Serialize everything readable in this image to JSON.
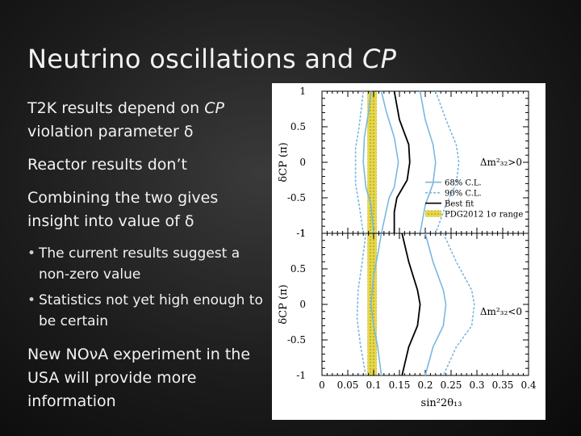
{
  "slide": {
    "title_main": "Neutrino oscillations and ",
    "title_italic": "CP",
    "bullets": [
      {
        "pre": "T2K results depend on ",
        "italic": "CP",
        "post": " violation parameter δ"
      },
      {
        "pre": "Reactor results don’t",
        "italic": "",
        "post": ""
      },
      {
        "pre": "Combining the two gives insight into value of δ",
        "italic": "",
        "post": ""
      }
    ],
    "sub_bullets": [
      "The current results suggest a non-zero value",
      "Statistics not yet high enough to be certain"
    ],
    "last_bullet": "New NOνA experiment in the USA will provide more information"
  },
  "chart_data": {
    "type": "line",
    "xlabel": "sin²2θ₁₃",
    "ylabel": "δCP (π)",
    "xlim": [
      0,
      0.4
    ],
    "ylim": [
      -1,
      1
    ],
    "x_ticks": [
      "0",
      "0.05",
      "0.1",
      "0.15",
      "0.2",
      "0.25",
      "0.3",
      "0.35",
      "0.4"
    ],
    "y_ticks": [
      "1",
      "0.5",
      "0",
      "-0.5",
      "-1"
    ],
    "legend_entries": [
      "68% C.L.",
      "90% C.L.",
      "Best fit",
      "PDG2012 1σ range"
    ],
    "legend_position": "right",
    "band": {
      "label": "PDG2012 1σ range",
      "xmin": 0.088,
      "xmax": 0.106,
      "color": "#e6d84a"
    },
    "panels": [
      {
        "label": "Δm²₃₂>0",
        "series": [
          {
            "name": "68% C.L.",
            "style": "solid",
            "color": "#7ab8e0",
            "points": [
              [
                0.095,
                1
              ],
              [
                0.09,
                0.7
              ],
              [
                0.082,
                0.35
              ],
              [
                0.08,
                0
              ],
              [
                0.085,
                -0.35
              ],
              [
                0.095,
                -0.6
              ],
              [
                0.1,
                -1
              ],
              [
                0.115,
                -1
              ],
              [
                0.13,
                -0.5
              ],
              [
                0.14,
                -0.35
              ],
              [
                0.148,
                0
              ],
              [
                0.14,
                0.35
              ],
              [
                0.125,
                0.7
              ],
              [
                0.115,
                1
              ]
            ],
            "closed": false
          },
          {
            "name": "68% C.L. outer",
            "style": "solid",
            "color": "#7ab8e0",
            "points": [
              [
                0.19,
                1
              ],
              [
                0.2,
                0.6
              ],
              [
                0.215,
                0.25
              ],
              [
                0.22,
                0
              ],
              [
                0.215,
                -0.3
              ],
              [
                0.2,
                -0.6
              ],
              [
                0.19,
                -1
              ]
            ]
          },
          {
            "name": "90% C.L.",
            "style": "dashed",
            "color": "#7ab8e0",
            "points": [
              [
                0.22,
                1
              ],
              [
                0.24,
                0.6
              ],
              [
                0.26,
                0.25
              ],
              [
                0.265,
                0
              ],
              [
                0.26,
                -0.3
              ],
              [
                0.24,
                -0.6
              ],
              [
                0.22,
                -1
              ]
            ]
          },
          {
            "name": "90% C.L. inner",
            "style": "dashed",
            "color": "#7ab8e0",
            "points": [
              [
                0.08,
                1
              ],
              [
                0.072,
                0.5
              ],
              [
                0.065,
                0.2
              ],
              [
                0.065,
                -0.3
              ],
              [
                0.072,
                -0.6
              ],
              [
                0.08,
                -1
              ]
            ]
          },
          {
            "name": "Best fit",
            "style": "solid",
            "color": "#000000",
            "points": [
              [
                0.14,
                1
              ],
              [
                0.15,
                0.6
              ],
              [
                0.168,
                0.25
              ],
              [
                0.17,
                0
              ],
              [
                0.165,
                -0.25
              ],
              [
                0.145,
                -0.5
              ],
              [
                0.14,
                -0.7
              ],
              [
                0.14,
                -1
              ]
            ]
          }
        ]
      },
      {
        "label": "Δm²₃₂<0",
        "series": [
          {
            "name": "68% C.L.",
            "style": "solid",
            "color": "#7ab8e0",
            "points": [
              [
                0.115,
                1
              ],
              [
                0.108,
                0.7
              ],
              [
                0.1,
                0.4
              ],
              [
                0.095,
                0
              ],
              [
                0.1,
                -0.3
              ],
              [
                0.108,
                -0.6
              ],
              [
                0.115,
                -1
              ]
            ]
          },
          {
            "name": "68% C.L. outer",
            "style": "solid",
            "color": "#7ab8e0",
            "points": [
              [
                0.2,
                1
              ],
              [
                0.215,
                0.6
              ],
              [
                0.235,
                0.2
              ],
              [
                0.24,
                0
              ],
              [
                0.235,
                -0.3
              ],
              [
                0.215,
                -0.6
              ],
              [
                0.2,
                -1
              ]
            ]
          },
          {
            "name": "90% C.L.",
            "style": "dashed",
            "color": "#7ab8e0",
            "points": [
              [
                0.235,
                1
              ],
              [
                0.26,
                0.6
              ],
              [
                0.29,
                0.2
              ],
              [
                0.295,
                0
              ],
              [
                0.29,
                -0.3
              ],
              [
                0.26,
                -0.6
              ],
              [
                0.235,
                -1
              ]
            ]
          },
          {
            "name": "90% C.L. inner",
            "style": "dashed",
            "color": "#7ab8e0",
            "points": [
              [
                0.085,
                1
              ],
              [
                0.078,
                0.6
              ],
              [
                0.07,
                0.2
              ],
              [
                0.068,
                -0.2
              ],
              [
                0.075,
                -0.6
              ],
              [
                0.085,
                -1
              ]
            ]
          },
          {
            "name": "Best fit",
            "style": "solid",
            "color": "#000000",
            "points": [
              [
                0.155,
                1
              ],
              [
                0.168,
                0.6
              ],
              [
                0.185,
                0.2
              ],
              [
                0.19,
                0
              ],
              [
                0.185,
                -0.3
              ],
              [
                0.168,
                -0.6
              ],
              [
                0.155,
                -1
              ]
            ]
          }
        ]
      }
    ]
  }
}
